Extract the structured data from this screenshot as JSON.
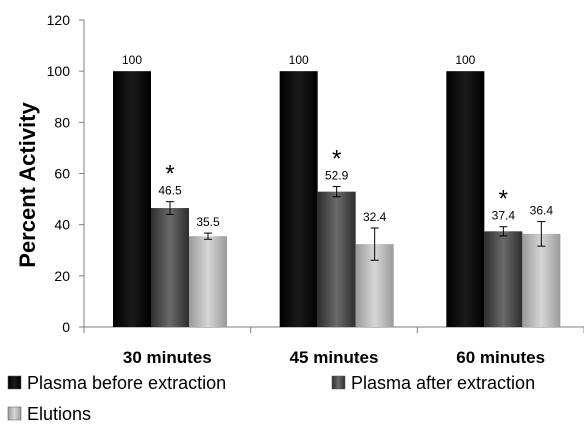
{
  "chart_data": {
    "type": "bar",
    "title": "",
    "xlabel": "",
    "ylabel": "Percent Activity",
    "ylim": [
      0,
      120
    ],
    "yticks": [
      0,
      20,
      40,
      60,
      80,
      100,
      120
    ],
    "grid": false,
    "legend_position": "bottom",
    "categories": [
      "30 minutes",
      "45 minutes",
      "60 minutes"
    ],
    "series": [
      {
        "name": "Plasma before extraction",
        "values": [
          100,
          100,
          100
        ],
        "value_labels": [
          "100",
          "100",
          "100"
        ],
        "errors": [
          0,
          0,
          0
        ],
        "significance": [
          "",
          "",
          ""
        ],
        "color": "#000000"
      },
      {
        "name": "Plasma after extraction",
        "values": [
          46.5,
          52.9,
          37.4
        ],
        "value_labels": [
          "46.5",
          "52.9",
          "37.4"
        ],
        "errors": [
          2.5,
          2,
          1.8
        ],
        "significance": [
          "*",
          "*",
          "*"
        ],
        "color": "#4a4a4a"
      },
      {
        "name": "Elutions",
        "values": [
          35.5,
          32.4,
          36.4
        ],
        "value_labels": [
          "35.5",
          "32.4",
          "36.4"
        ],
        "errors": [
          1.2,
          6.3,
          4.8
        ],
        "significance": [
          "",
          "",
          ""
        ],
        "color": "#b8b8b8"
      }
    ]
  }
}
